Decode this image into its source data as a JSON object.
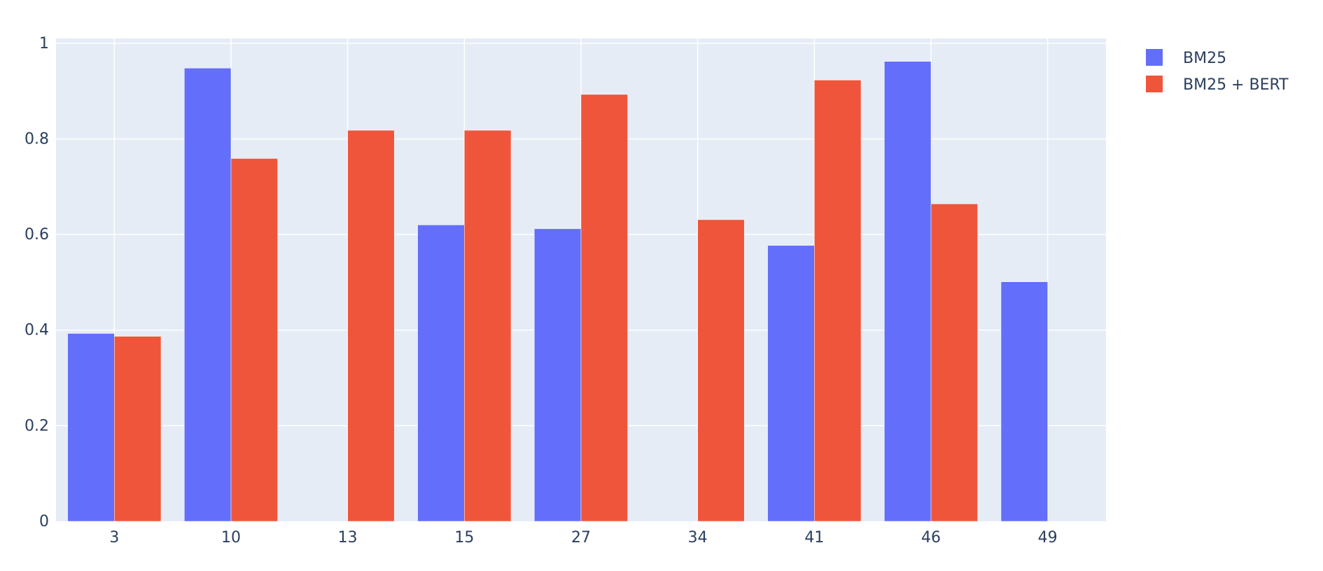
{
  "chart_data": {
    "type": "bar",
    "categories": [
      "3",
      "10",
      "13",
      "15",
      "27",
      "34",
      "41",
      "46",
      "49"
    ],
    "series": [
      {
        "name": "BM25",
        "color": "#636efa",
        "values": [
          0.393,
          0.948,
          0,
          0.62,
          0.612,
          0,
          0.577,
          0.962,
          0.501
        ]
      },
      {
        "name": "BM25 + BERT",
        "color": "#ef553b",
        "values": [
          0.387,
          0.759,
          0.818,
          0.818,
          0.893,
          0.631,
          0.923,
          0.664,
          0
        ]
      }
    ],
    "yticks": [
      "0",
      "0.2",
      "0.4",
      "0.6",
      "0.8",
      "1"
    ],
    "ytick_values": [
      0,
      0.2,
      0.4,
      0.6,
      0.8,
      1
    ],
    "ylim": [
      0,
      1.01
    ],
    "grid": true,
    "legend": "top-right",
    "plot_bg": "#e5ecf6"
  }
}
